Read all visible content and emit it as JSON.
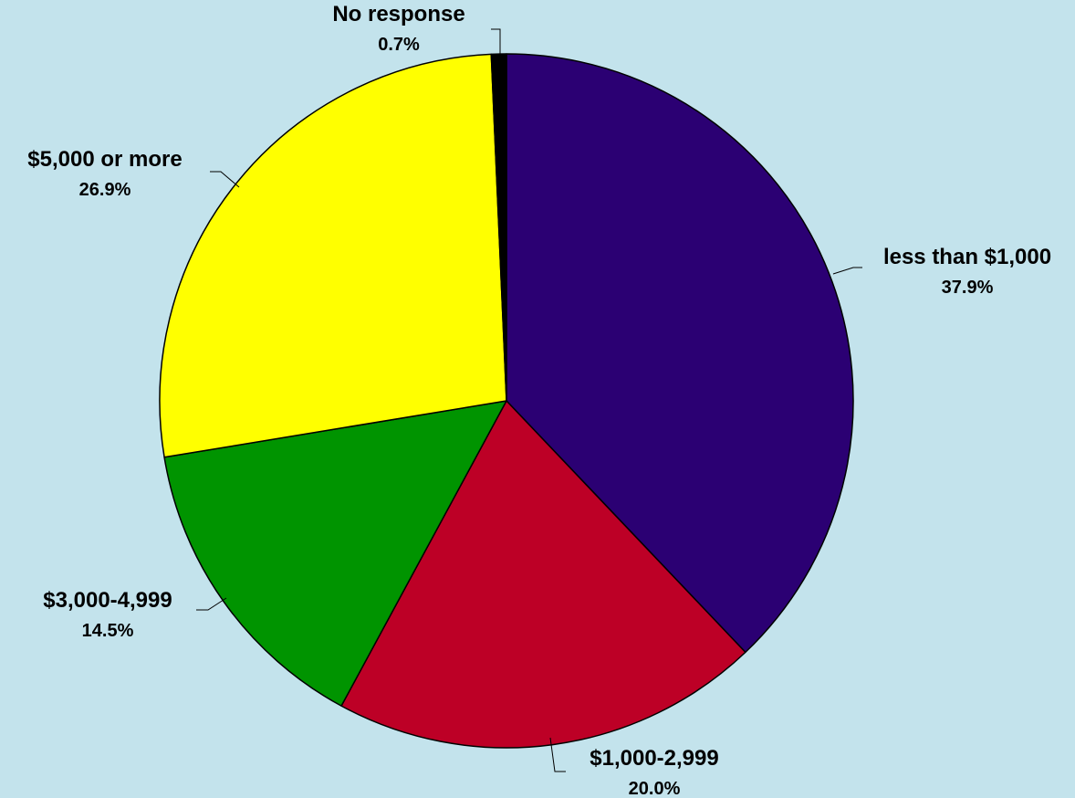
{
  "chart_data": {
    "type": "pie",
    "slices": [
      {
        "label": "less than $1,000",
        "value": 37.9,
        "value_label": "37.9%",
        "color": "#2b0073"
      },
      {
        "label": "$1,000-2,999",
        "value": 20.0,
        "value_label": "20.0%",
        "color": "#bd0026"
      },
      {
        "label": "$3,000-4,999",
        "value": 14.5,
        "value_label": "14.5%",
        "color": "#009400"
      },
      {
        "label": "$5,000 or more",
        "value": 26.9,
        "value_label": "26.9%",
        "color": "#ffff00"
      },
      {
        "label": "No response",
        "value": 0.7,
        "value_label": "0.7%",
        "color": "#000000"
      }
    ],
    "start": "12 o'clock",
    "direction": "clockwise",
    "background_color": "#c3e3ec"
  }
}
